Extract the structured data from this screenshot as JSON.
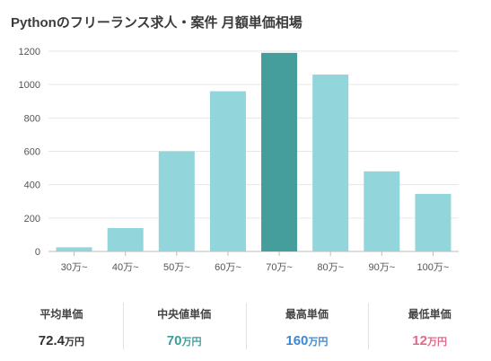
{
  "title": "Pythonのフリーランス求人・案件 月額単価相場",
  "chart_data": {
    "type": "bar",
    "categories": [
      "30万~",
      "40万~",
      "50万~",
      "60万~",
      "70万~",
      "80万~",
      "90万~",
      "100万~"
    ],
    "values": [
      25,
      140,
      600,
      960,
      1190,
      1060,
      480,
      345
    ],
    "highlight_index": 4,
    "ylim": [
      0,
      1200
    ],
    "yticks": [
      "0",
      "200",
      "400",
      "600",
      "800",
      "1000",
      "1200"
    ],
    "bar_color": "#92d5da",
    "highlight_color": "#459d9c",
    "grid": true
  },
  "stats": [
    {
      "label": "平均単価",
      "value": "72.4",
      "unit": "万円",
      "color": "#333333"
    },
    {
      "label": "中央値単価",
      "value": "70",
      "unit": "万円",
      "color": "#3f9c9a"
    },
    {
      "label": "最高単価",
      "value": "160",
      "unit": "万円",
      "color": "#3f86d1"
    },
    {
      "label": "最低単価",
      "value": "12",
      "unit": "万円",
      "color": "#e06a86"
    }
  ]
}
